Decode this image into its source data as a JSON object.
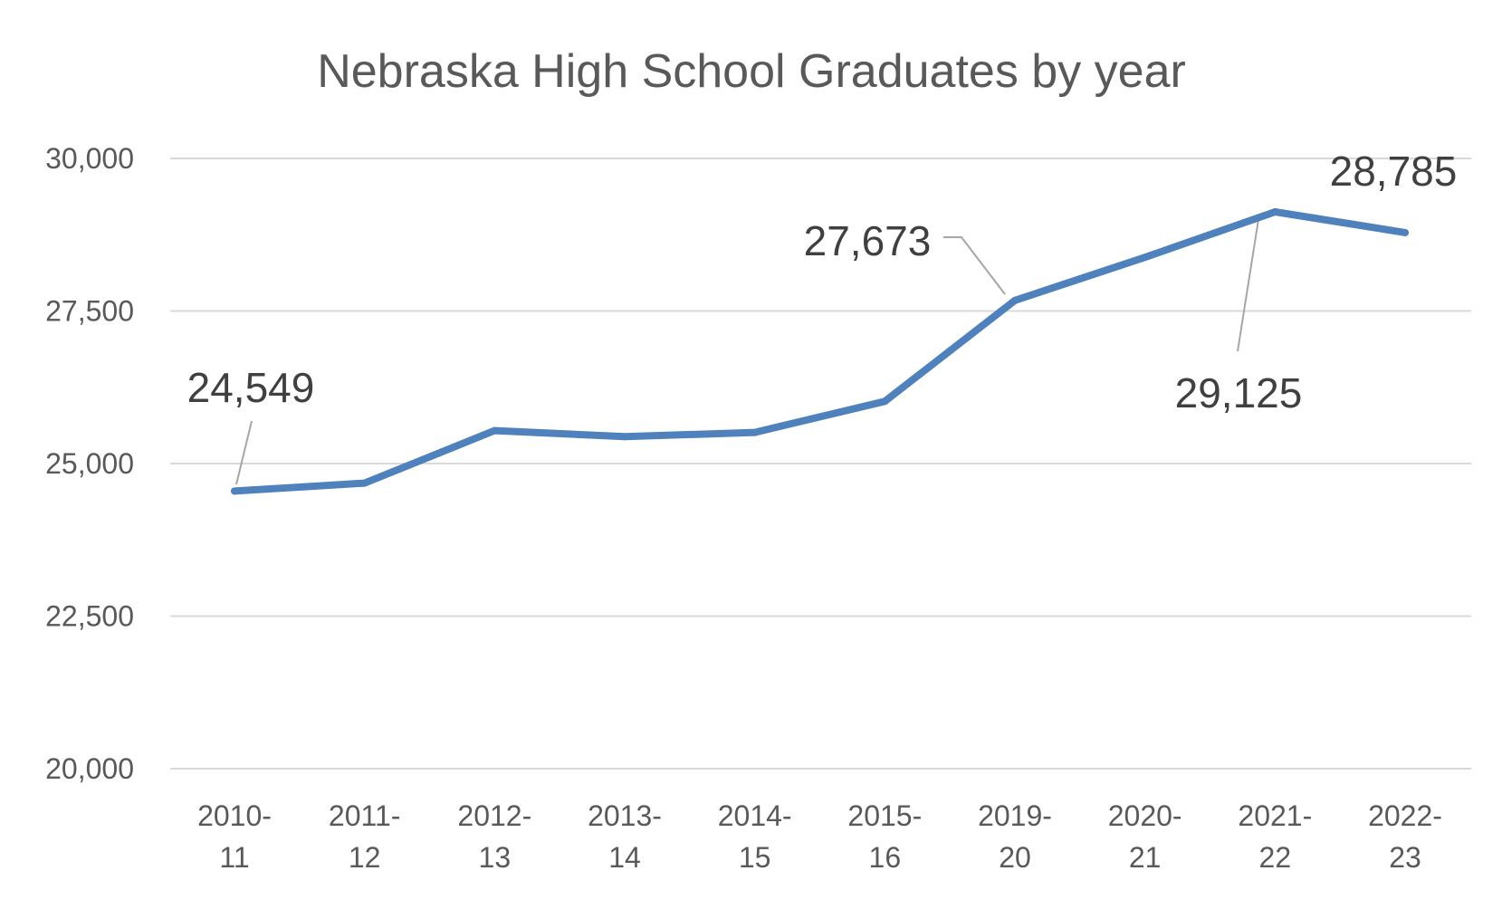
{
  "chart_data": {
    "type": "line",
    "title": "Nebraska High School Graduates by year",
    "xlabel": "",
    "ylabel": "",
    "ylim": [
      20000,
      30000
    ],
    "y_ticks": [
      "20,000",
      "22,500",
      "25,000",
      "27,500",
      "30,000"
    ],
    "y_tick_values": [
      20000,
      22500,
      25000,
      27500,
      30000
    ],
    "grid": true,
    "legend": "none",
    "categories": [
      [
        "2010-",
        "11"
      ],
      [
        "2011-",
        "12"
      ],
      [
        "2012-",
        "13"
      ],
      [
        "2013-",
        "14"
      ],
      [
        "2014-",
        "15"
      ],
      [
        "2015-",
        "16"
      ],
      [
        "2019-",
        "20"
      ],
      [
        "2020-",
        "21"
      ],
      [
        "2021-",
        "22"
      ],
      [
        "2022-",
        "23"
      ]
    ],
    "series": [
      {
        "values": [
          24549,
          24680,
          25540,
          25440,
          25510,
          26020,
          27673,
          28380,
          29125,
          28785
        ],
        "color": "#4f81bd"
      }
    ],
    "data_labels": [
      {
        "index": 0,
        "text": "24,549"
      },
      {
        "index": 6,
        "text": "27,673"
      },
      {
        "index": 8,
        "text": "29,125"
      },
      {
        "index": 9,
        "text": "28,785"
      }
    ]
  }
}
